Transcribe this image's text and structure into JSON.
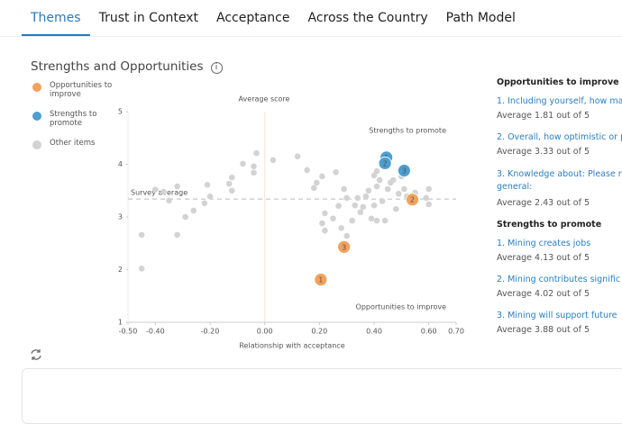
{
  "tabs": [
    "Themes",
    "Trust in Context",
    "Acceptance",
    "Across the Country",
    "Path Model"
  ],
  "section_title": "Strengths and Opportunities",
  "chart_data": {
    "type": "scatter",
    "title": "Average score",
    "x_label": "Relationship with acceptance",
    "xlim": [
      -0.5,
      0.7
    ],
    "xticks": [
      {
        "value": -0.5,
        "label": "-0.50"
      },
      {
        "value": -0.4,
        "label": "-0.40"
      },
      {
        "value": -0.2,
        "label": "-0.20"
      },
      {
        "value": 0,
        "label": "0.00"
      },
      {
        "value": 0.2,
        "label": "0.20"
      },
      {
        "value": 0.4,
        "label": "0.40"
      },
      {
        "value": 0.6,
        "label": "0.60"
      },
      {
        "value": 0.7,
        "label": "0.70"
      }
    ],
    "ylim": [
      1,
      5
    ],
    "yticks": [
      1,
      2,
      3,
      4,
      5
    ],
    "annotations": [
      "Strengths to promote",
      "Opportunities to improve"
    ],
    "survey_average": {
      "label": "Survey average",
      "value": 3.34
    },
    "series": [
      {
        "name": "Opportunities to improve",
        "color": "#f2a25c",
        "labels": [
          "1",
          "2",
          "3"
        ],
        "x": [
          0.205,
          0.54,
          0.29
        ],
        "values": [
          1.81,
          3.33,
          2.43
        ]
      },
      {
        "name": "Strengths to promote",
        "color": "#4b9fd1",
        "labels": [
          "1",
          "2",
          "3"
        ],
        "x": [
          0.445,
          0.44,
          0.51
        ],
        "values": [
          4.13,
          4.02,
          3.88
        ]
      },
      {
        "name": "Other items",
        "color": "#d3d3d3",
        "x": [
          -0.45,
          -0.45,
          -0.37,
          -0.4,
          -0.35,
          -0.32,
          -0.32,
          -0.29,
          -0.26,
          -0.22,
          -0.2,
          -0.21,
          -0.13,
          -0.12,
          -0.12,
          -0.08,
          -0.04,
          -0.04,
          -0.03,
          0.03,
          0.12,
          0.155,
          0.18,
          0.19,
          0.21,
          0.26,
          0.22,
          0.21,
          0.22,
          0.25,
          0.27,
          0.3,
          0.28,
          0.3,
          0.32,
          0.33,
          0.35,
          0.36,
          0.37,
          0.38,
          0.39,
          0.4,
          0.41,
          0.41,
          0.42,
          0.43,
          0.44,
          0.45,
          0.46,
          0.47,
          0.48,
          0.49,
          0.5,
          0.51,
          0.52,
          0.55,
          0.59,
          0.6,
          0.6,
          0.41,
          0.34,
          0.4,
          0.29
        ],
        "values": [
          2.66,
          2.02,
          3.48,
          3.52,
          3.31,
          3.58,
          2.66,
          3.0,
          3.12,
          3.26,
          3.39,
          3.61,
          3.63,
          3.5,
          3.75,
          4.01,
          3.84,
          3.96,
          4.21,
          4.08,
          4.15,
          3.89,
          3.55,
          3.65,
          3.77,
          3.85,
          3.07,
          2.88,
          2.74,
          2.97,
          3.21,
          3.36,
          2.79,
          2.64,
          2.93,
          3.22,
          3.09,
          3.19,
          3.39,
          3.5,
          2.97,
          3.22,
          3.87,
          3.58,
          3.7,
          3.3,
          2.93,
          3.53,
          3.65,
          3.7,
          3.15,
          3.44,
          3.77,
          3.53,
          3.39,
          3.46,
          3.36,
          3.24,
          3.53,
          2.93,
          3.36,
          3.79,
          3.53
        ]
      }
    ]
  },
  "panel": [
    {
      "heading": "Opportunities to improve",
      "items": [
        {
          "text": "1. Including yourself, how ma",
          "average": "Average 1.81 out of 5"
        },
        {
          "text": "2. Overall, how optimistic or p",
          "average": "Average 3.33 out of 5"
        },
        {
          "text": "3. Knowledge about: Please r general:",
          "average": "Average 2.43 out of 5"
        }
      ]
    },
    {
      "heading": "Strengths to promote",
      "items": [
        {
          "text": "1. Mining creates jobs",
          "average": "Average 4.13 out of 5"
        },
        {
          "text": "2. Mining contributes signific",
          "average": "Average 4.02 out of 5"
        },
        {
          "text": "3. Mining will support future",
          "average": "Average 3.88 out of 5"
        }
      ]
    }
  ]
}
